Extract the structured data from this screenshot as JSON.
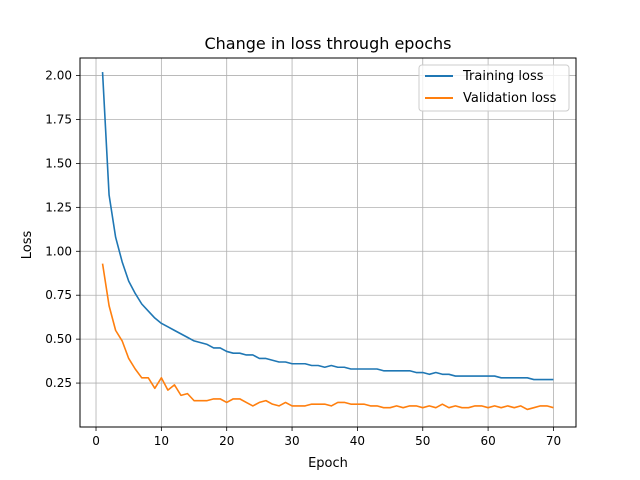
{
  "chart_data": {
    "type": "line",
    "title": "Change in loss through epochs",
    "xlabel": "Epoch",
    "ylabel": "Loss",
    "xlim": [
      -2.45,
      73.45
    ],
    "ylim": [
      0.0,
      2.1
    ],
    "xticks": [
      0,
      10,
      20,
      30,
      40,
      50,
      60,
      70
    ],
    "yticks": [
      0.25,
      0.5,
      0.75,
      1.0,
      1.25,
      1.5,
      1.75,
      2.0
    ],
    "ytick_labels": [
      "0.25",
      "0.50",
      "0.75",
      "1.00",
      "1.25",
      "1.50",
      "1.75",
      "2.00"
    ],
    "grid": true,
    "legend_position": "top-right",
    "x": [
      1,
      2,
      3,
      4,
      5,
      6,
      7,
      8,
      9,
      10,
      11,
      12,
      13,
      14,
      15,
      16,
      17,
      18,
      19,
      20,
      21,
      22,
      23,
      24,
      25,
      26,
      27,
      28,
      29,
      30,
      31,
      32,
      33,
      34,
      35,
      36,
      37,
      38,
      39,
      40,
      41,
      42,
      43,
      44,
      45,
      46,
      47,
      48,
      49,
      50,
      51,
      52,
      53,
      54,
      55,
      56,
      57,
      58,
      59,
      60,
      61,
      62,
      63,
      64,
      65,
      66,
      67,
      68,
      69,
      70
    ],
    "series": [
      {
        "name": "Training loss",
        "color": "#1f77b4",
        "values": [
          2.02,
          1.32,
          1.08,
          0.94,
          0.83,
          0.76,
          0.7,
          0.66,
          0.62,
          0.59,
          0.57,
          0.55,
          0.53,
          0.51,
          0.49,
          0.48,
          0.47,
          0.45,
          0.45,
          0.43,
          0.42,
          0.42,
          0.41,
          0.41,
          0.39,
          0.39,
          0.38,
          0.37,
          0.37,
          0.36,
          0.36,
          0.36,
          0.35,
          0.35,
          0.34,
          0.35,
          0.34,
          0.34,
          0.33,
          0.33,
          0.33,
          0.33,
          0.33,
          0.32,
          0.32,
          0.32,
          0.32,
          0.32,
          0.31,
          0.31,
          0.3,
          0.31,
          0.3,
          0.3,
          0.29,
          0.29,
          0.29,
          0.29,
          0.29,
          0.29,
          0.29,
          0.28,
          0.28,
          0.28,
          0.28,
          0.28,
          0.27,
          0.27,
          0.27,
          0.27
        ]
      },
      {
        "name": "Validation loss",
        "color": "#ff7f0e",
        "values": [
          0.93,
          0.69,
          0.55,
          0.49,
          0.39,
          0.33,
          0.28,
          0.28,
          0.22,
          0.28,
          0.21,
          0.24,
          0.18,
          0.19,
          0.15,
          0.15,
          0.15,
          0.16,
          0.16,
          0.14,
          0.16,
          0.16,
          0.14,
          0.12,
          0.14,
          0.15,
          0.13,
          0.12,
          0.14,
          0.12,
          0.12,
          0.12,
          0.13,
          0.13,
          0.13,
          0.12,
          0.14,
          0.14,
          0.13,
          0.13,
          0.13,
          0.12,
          0.12,
          0.11,
          0.11,
          0.12,
          0.11,
          0.12,
          0.12,
          0.11,
          0.12,
          0.11,
          0.13,
          0.11,
          0.12,
          0.11,
          0.11,
          0.12,
          0.12,
          0.11,
          0.12,
          0.11,
          0.12,
          0.11,
          0.12,
          0.1,
          0.11,
          0.12,
          0.12,
          0.11
        ]
      }
    ]
  }
}
